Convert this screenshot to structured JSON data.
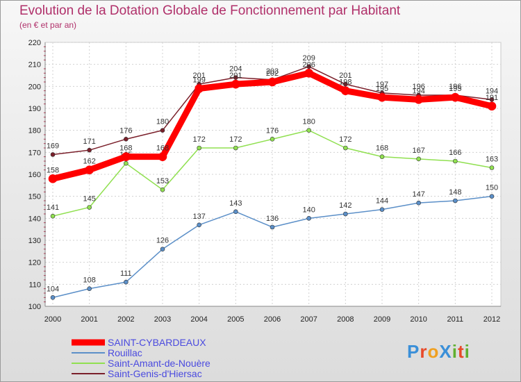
{
  "chart_data": {
    "type": "line",
    "title": "Evolution de la Dotation Globale de Fonctionnement par Habitant",
    "subtitle": "(en € et par an)",
    "x": [
      "2000",
      "2001",
      "2002",
      "2003",
      "2004",
      "2005",
      "2006",
      "2007",
      "2008",
      "2009",
      "2010",
      "2011",
      "2012"
    ],
    "ylim": [
      100,
      220
    ],
    "yticks": [
      100,
      110,
      120,
      130,
      140,
      150,
      160,
      170,
      180,
      190,
      200,
      210,
      220
    ],
    "grid": true,
    "legend": "bottom-left",
    "series": [
      {
        "name": "SAINT-CYBARDEAUX",
        "color": "#ff0000",
        "width": 9,
        "values": [
          158,
          162,
          168,
          168,
          199,
          201,
          202,
          206,
          198,
          195,
          194,
          195,
          191
        ]
      },
      {
        "name": "Rouillac",
        "color": "#5b8fc8",
        "width": 1.5,
        "values": [
          104,
          108,
          111,
          126,
          137,
          143,
          136,
          140,
          142,
          144,
          147,
          148,
          150
        ]
      },
      {
        "name": "Saint-Amant-de-Nouère",
        "color": "#90e050",
        "width": 1.5,
        "values": [
          141,
          145,
          165,
          153,
          172,
          172,
          176,
          180,
          172,
          168,
          167,
          166,
          163
        ]
      },
      {
        "name": "Saint-Genis-d'Hiersac",
        "color": "#7a1f2a",
        "width": 1.5,
        "values": [
          169,
          171,
          176,
          180,
          201,
          204,
          203,
          209,
          201,
          197,
          196,
          196,
          194
        ]
      }
    ]
  },
  "logo": {
    "text": "ProXiti"
  }
}
